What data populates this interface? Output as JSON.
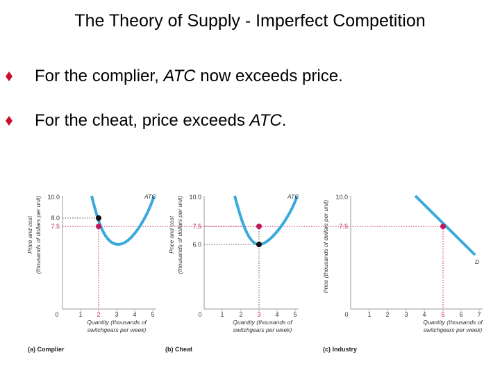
{
  "slide": {
    "title": "The Theory of Supply - Imperfect Competition",
    "bullets": [
      {
        "pre": "For the complier, ",
        "em": "ATC",
        "post": " now exceeds price."
      },
      {
        "pre": "For the cheat, price exceeds ",
        "em": "ATC",
        "post": "."
      }
    ]
  },
  "colors": {
    "curve": "#3aa9dc",
    "price_point": "#c2185b",
    "cost_point": "#111111",
    "bullet": "#c8102e"
  },
  "panels": [
    {
      "caption": "(a) Complier",
      "ylabel_1": "Price and cost",
      "ylabel_2": "(thousands of dollars per unit)",
      "xlabel_1": "Quantity (thousands of",
      "xlabel_2": "switchgears per week)",
      "curve_label": "ATC",
      "y_ticks": [
        "10.0",
        "8.0",
        "7.5"
      ],
      "x_ticks": [
        "0",
        "1",
        "2",
        "3",
        "4",
        "5"
      ],
      "price": 7.5,
      "cost": 8.0,
      "quantity": 2
    },
    {
      "caption": "(b) Cheat",
      "ylabel_1": "Price and cost",
      "ylabel_2": "(thousands of dollars per unit)",
      "xlabel_1": "Quantity (thousands of",
      "xlabel_2": "switchgears per week)",
      "curve_label": "ATC",
      "y_ticks": [
        "10.0",
        "7.5",
        "6.0"
      ],
      "x_ticks": [
        "0",
        "1",
        "2",
        "3",
        "4",
        "5"
      ],
      "price": 7.5,
      "cost": 6.0,
      "quantity": 3
    },
    {
      "caption": "(c) Industry",
      "ylabel_1": "Price (thousands of dollars per unit)",
      "xlabel_1": "Quantity (thousands of",
      "xlabel_2": "switchgears per week)",
      "curve_label": "D",
      "y_ticks": [
        "10.0",
        "7.5"
      ],
      "x_ticks": [
        "0",
        "1",
        "2",
        "3",
        "4",
        "5",
        "6",
        "7"
      ],
      "price": 7.5,
      "quantity": 5
    }
  ]
}
